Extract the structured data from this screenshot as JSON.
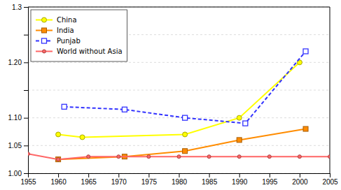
{
  "chart_data": {
    "type": "line",
    "series": [
      {
        "name": "China",
        "color": "#FFFF00",
        "marker": "circle",
        "line_style": "solid",
        "x": [
          1960,
          1964,
          1981,
          1990,
          2000
        ],
        "values": [
          1.07,
          1.065,
          1.07,
          1.1,
          1.2
        ]
      },
      {
        "name": "India",
        "color": "#FF8C00",
        "marker": "square",
        "line_style": "solid",
        "x": [
          1960,
          1971,
          1981,
          1990,
          2001
        ],
        "values": [
          1.025,
          1.03,
          1.04,
          1.06,
          1.08
        ]
      },
      {
        "name": "Punjab",
        "color": "#3333FF",
        "marker": "open-square",
        "line_style": "dashed",
        "x": [
          1961,
          1971,
          1981,
          1991,
          2001
        ],
        "values": [
          1.12,
          1.115,
          1.1,
          1.09,
          1.22
        ]
      },
      {
        "name": "World without Asia",
        "color": "#FF6666",
        "marker": "circle",
        "line_style": "solid",
        "x": [
          1955,
          1960,
          1965,
          1970,
          1975,
          1980,
          1985,
          1990,
          1995,
          2000,
          2005
        ],
        "values": [
          1.035,
          1.025,
          1.03,
          1.03,
          1.03,
          1.03,
          1.03,
          1.03,
          1.03,
          1.03,
          1.03
        ]
      }
    ],
    "xlim": [
      1955,
      2005
    ],
    "xticks": [
      1955,
      1960,
      1965,
      1970,
      1975,
      1980,
      1985,
      1990,
      1995,
      2000,
      2005
    ],
    "ylim": [
      1.0,
      1.3
    ],
    "yticks": [
      {
        "value": 1.0,
        "label": "1.00"
      },
      1.05,
      {
        "value": 1.1,
        "label": "1.10"
      },
      {
        "value": 1.15,
        "label": null
      },
      {
        "value": 1.2,
        "label": "1.20"
      },
      {
        "value": 1.25,
        "label": null
      },
      1.3
    ],
    "grid": true,
    "legend": "upper-left"
  }
}
